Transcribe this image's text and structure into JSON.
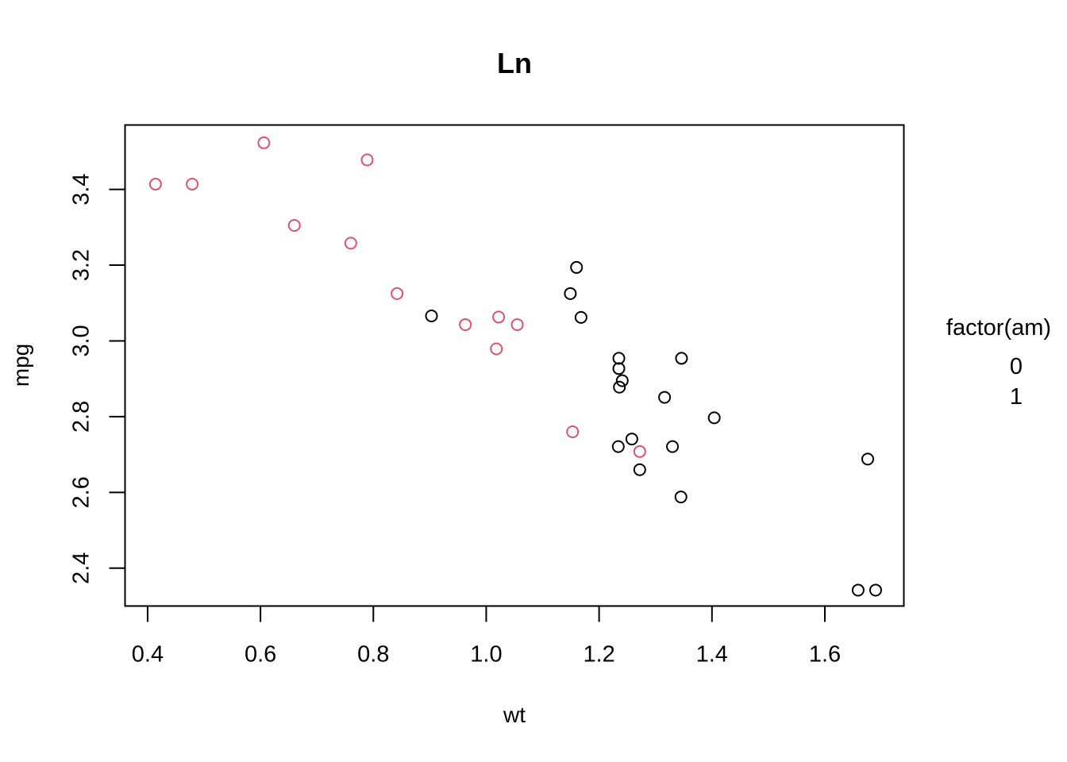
{
  "chart_data": {
    "type": "scatter",
    "title": "Ln",
    "xlabel": "wt",
    "ylabel": "mpg",
    "xlim": [
      0.36,
      1.74
    ],
    "ylim": [
      2.3,
      3.57
    ],
    "x_ticks": [
      0.4,
      0.6,
      0.8,
      1.0,
      1.2,
      1.4,
      1.6
    ],
    "x_tick_labels": [
      "0.4",
      "0.6",
      "0.8",
      "1.0",
      "1.2",
      "1.4",
      "1.6"
    ],
    "y_ticks": [
      2.4,
      2.6,
      2.8,
      3.0,
      3.2,
      3.4
    ],
    "y_tick_labels": [
      "2.4",
      "2.6",
      "2.8",
      "3.0",
      "3.2",
      "3.4"
    ],
    "grid": false,
    "legend": {
      "title": "factor(am)",
      "placement": "right",
      "entries": [
        "0",
        "1"
      ]
    },
    "series": [
      {
        "name": "0",
        "color": "#000000",
        "marker": "open-circle",
        "points": [
          [
            0.903,
            3.066
          ],
          [
            1.149,
            3.125
          ],
          [
            1.16,
            3.194
          ],
          [
            1.168,
            3.062
          ],
          [
            1.235,
            2.954
          ],
          [
            1.235,
            2.927
          ],
          [
            1.241,
            2.895
          ],
          [
            1.236,
            2.878
          ],
          [
            1.234,
            2.721
          ],
          [
            1.258,
            2.741
          ],
          [
            1.272,
            2.66
          ],
          [
            1.316,
            2.851
          ],
          [
            1.33,
            2.721
          ],
          [
            1.346,
            2.954
          ],
          [
            1.345,
            2.588
          ],
          [
            1.404,
            2.797
          ],
          [
            1.676,
            2.688
          ],
          [
            1.659,
            2.342
          ],
          [
            1.69,
            2.342
          ]
        ]
      },
      {
        "name": "1",
        "color": "#DF536B",
        "marker": "open-circle",
        "points": [
          [
            0.414,
            3.414
          ],
          [
            0.479,
            3.414
          ],
          [
            0.606,
            3.523
          ],
          [
            0.66,
            3.305
          ],
          [
            0.76,
            3.258
          ],
          [
            0.789,
            3.478
          ],
          [
            0.842,
            3.125
          ],
          [
            0.963,
            3.043
          ],
          [
            1.018,
            2.979
          ],
          [
            1.022,
            3.063
          ],
          [
            1.055,
            3.043
          ],
          [
            1.153,
            2.76
          ],
          [
            1.272,
            2.708
          ]
        ]
      }
    ]
  }
}
